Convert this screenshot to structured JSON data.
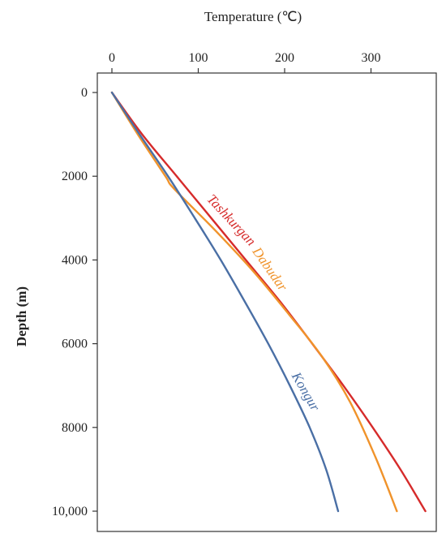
{
  "chart_data": {
    "type": "line",
    "xlabel": "Temperature (℃)",
    "ylabel": "Depth (m)",
    "xlim": [
      0,
      360
    ],
    "ylim": [
      0,
      10000
    ],
    "y_inverted": true,
    "x_axis_position": "top",
    "grid": false,
    "x_ticks": [
      0,
      100,
      200,
      300
    ],
    "x_tick_labels": [
      "0",
      "100",
      "200",
      "300"
    ],
    "y_ticks": [
      0,
      2000,
      4000,
      6000,
      8000,
      10000
    ],
    "y_tick_labels": [
      "0",
      "2000",
      "4000",
      "6000",
      "8000",
      "10,000"
    ],
    "series": [
      {
        "name": "Tashkurgan",
        "color": "#d62b2b",
        "x": [
          0,
          35,
          75,
          115,
          155,
          195,
          232,
          268,
          302,
          334,
          363
        ],
        "y": [
          0,
          1000,
          2000,
          3000,
          4000,
          5000,
          6000,
          7000,
          8000,
          9000,
          10000
        ]
      },
      {
        "name": "Dabudar",
        "color": "#f0932b",
        "x": [
          0,
          30,
          62,
          72,
          120,
          165,
          205,
          243,
          276,
          305,
          330
        ],
        "y": [
          0,
          1000,
          2000,
          2300,
          3300,
          4300,
          5300,
          6300,
          7400,
          8700,
          10000
        ]
      },
      {
        "name": "Kongur",
        "color": "#4a6fa5",
        "x": [
          0,
          32,
          65,
          96,
          126,
          154,
          181,
          206,
          229,
          248,
          262
        ],
        "y": [
          0,
          1000,
          2000,
          3000,
          4000,
          5000,
          6000,
          7000,
          8000,
          9000,
          10000
        ]
      }
    ]
  }
}
